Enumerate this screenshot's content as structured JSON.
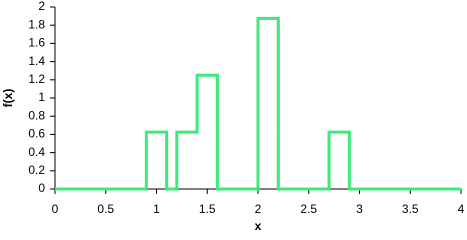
{
  "chart_data": {
    "type": "line",
    "x_label": "x",
    "y_label": "f(x)",
    "x": [
      0,
      0.9,
      0.9,
      1.1,
      1.1,
      1.2,
      1.2,
      1.4,
      1.4,
      1.6,
      1.6,
      2.0,
      2.0,
      2.2,
      2.2,
      2.7,
      2.7,
      2.9,
      2.9,
      4
    ],
    "values": [
      0,
      0,
      0.625,
      0.625,
      0,
      0,
      0.625,
      0.625,
      1.25,
      1.25,
      0,
      0,
      1.875,
      1.875,
      0,
      0,
      0.625,
      0.625,
      0,
      0
    ],
    "color": "#3ee87a",
    "xlim": [
      0,
      4
    ],
    "xticks": [
      0,
      0.5,
      1,
      1.5,
      2,
      2.5,
      3,
      3.5,
      4
    ],
    "ylim": [
      0,
      2
    ],
    "yticks": [
      0,
      0.2,
      0.4,
      0.6,
      0.8,
      1,
      1.2,
      1.4,
      1.6,
      1.8,
      2
    ],
    "grid": false
  }
}
